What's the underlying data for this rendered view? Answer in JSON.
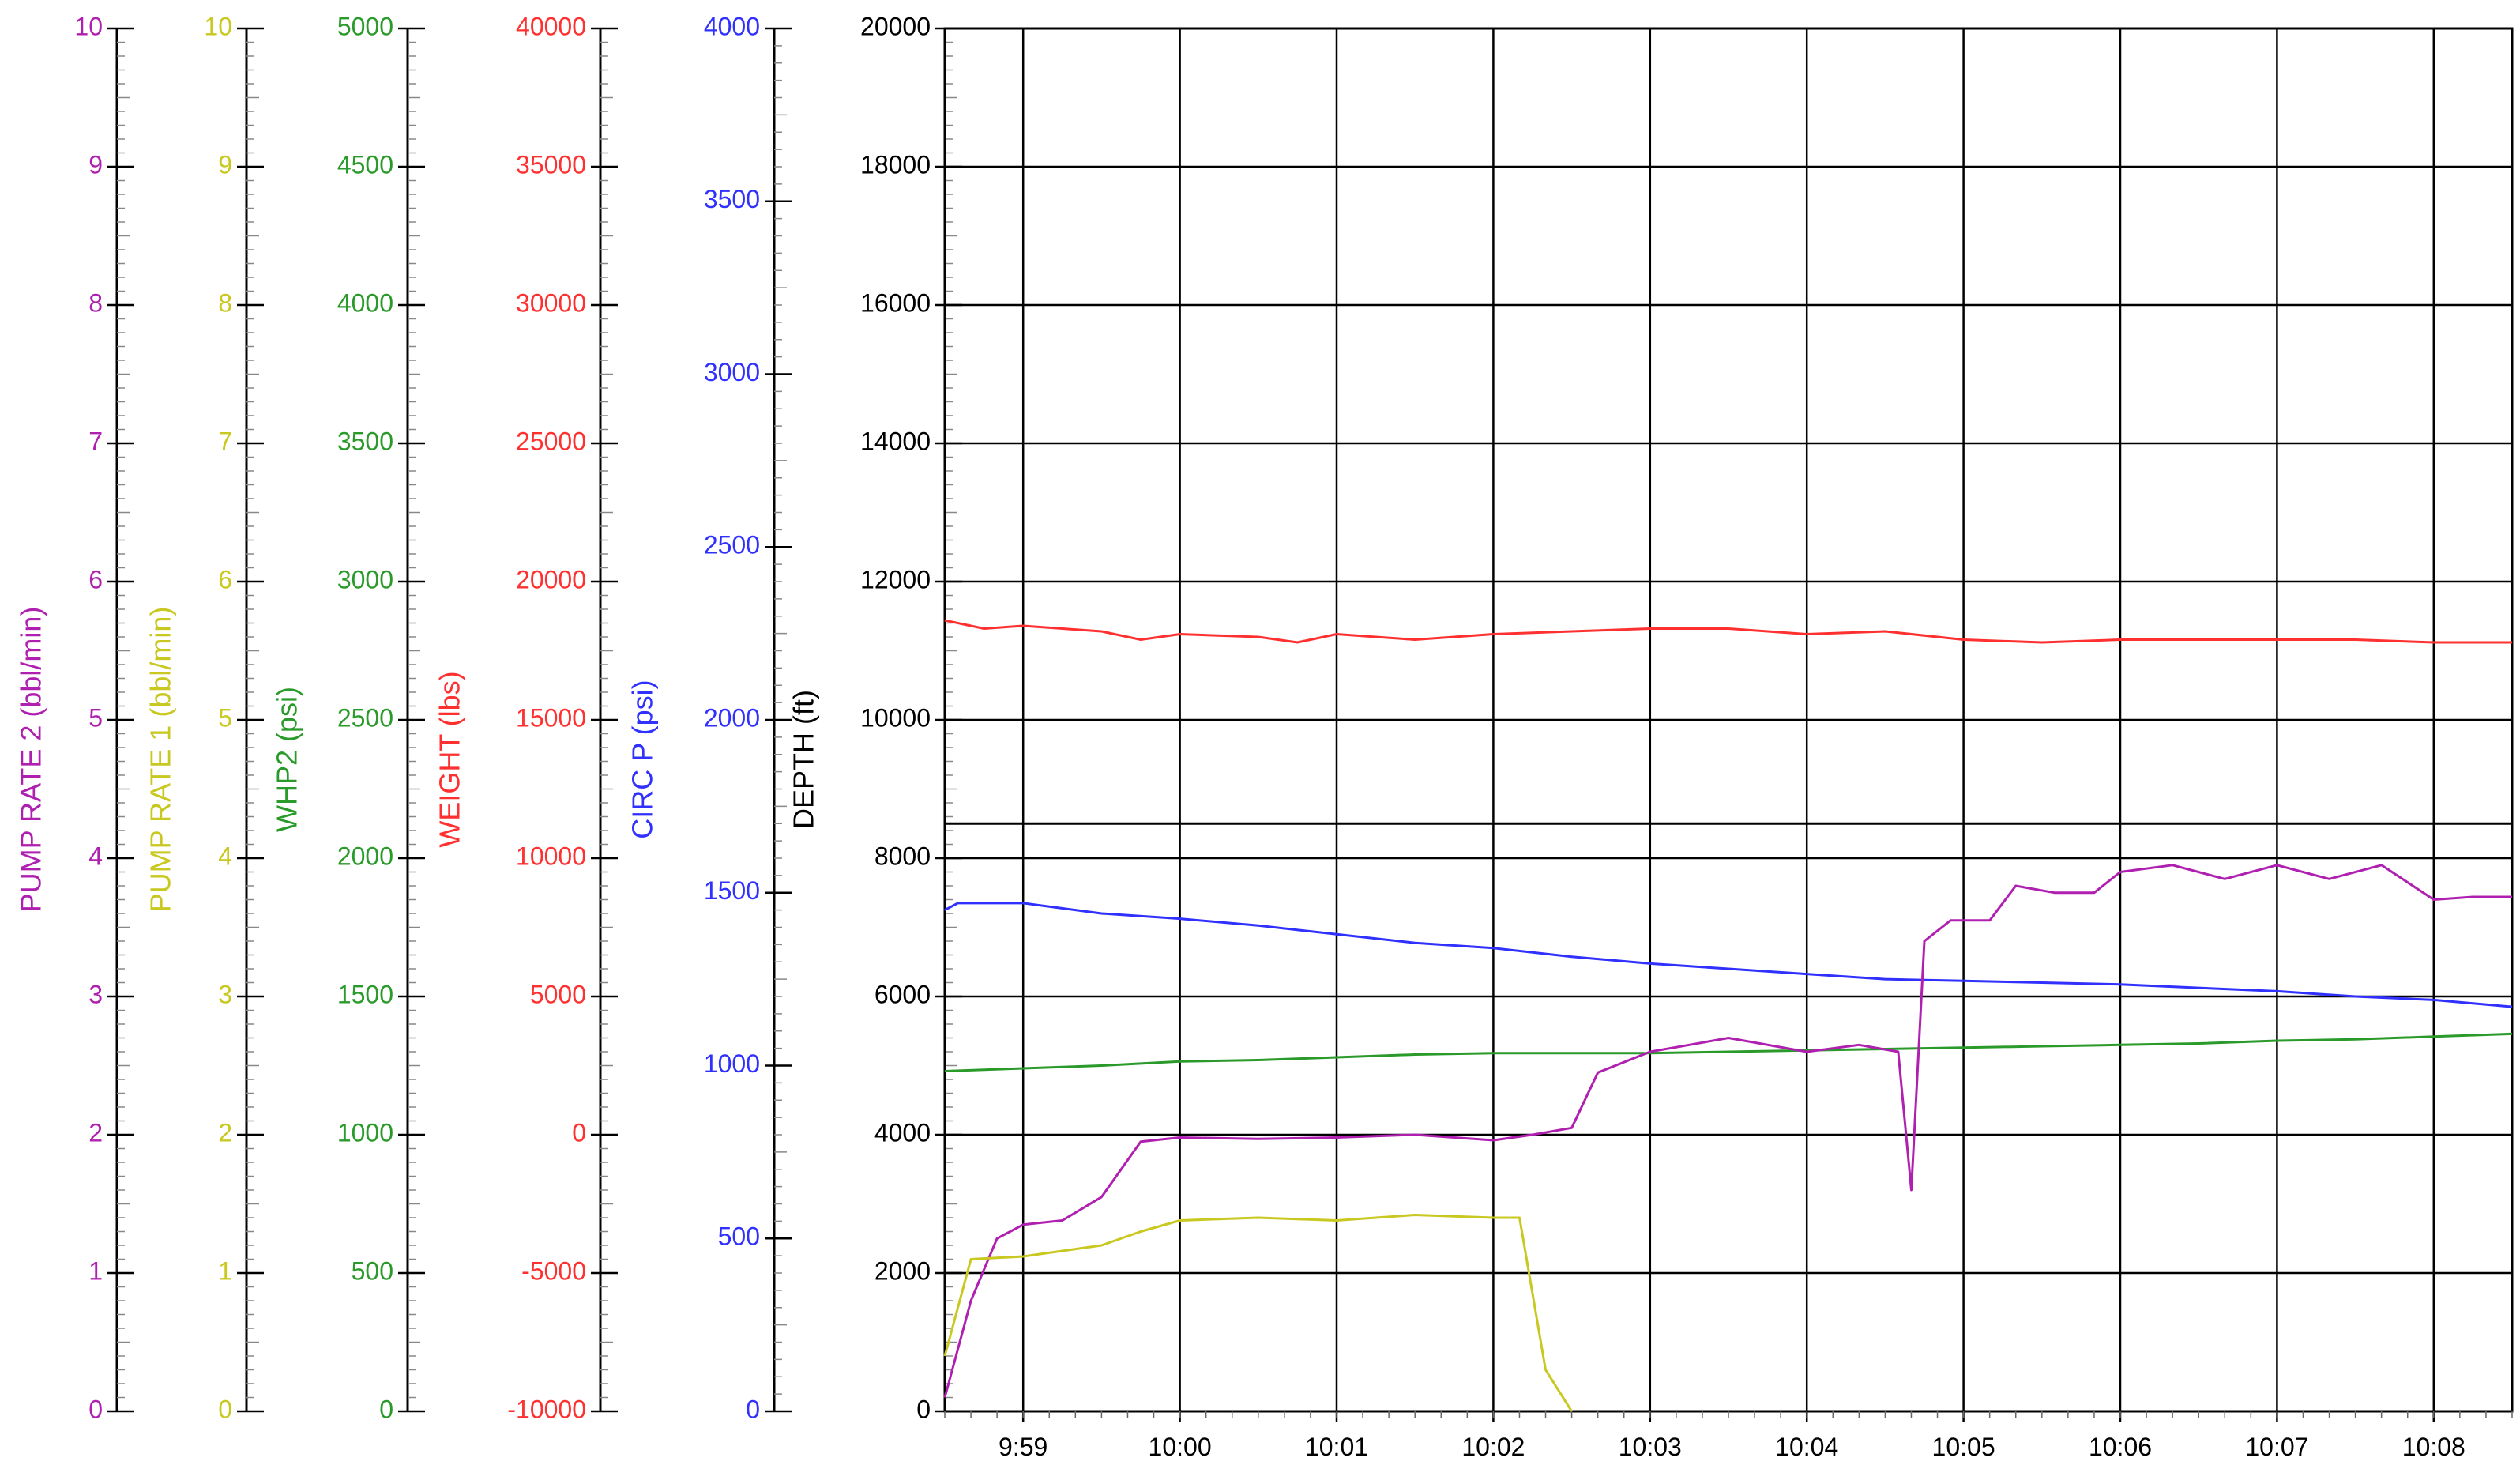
{
  "chart_data": {
    "type": "line",
    "x_axis": {
      "min": "09:58:30",
      "max": "10:08:30",
      "tick_labels": [
        "9:59",
        "10:00",
        "10:01",
        "10:02",
        "10:03",
        "10:04",
        "10:05",
        "10:06",
        "10:07",
        "10:08"
      ],
      "tick_times": [
        "09:59",
        "10:00",
        "10:01",
        "10:02",
        "10:03",
        "10:04",
        "10:05",
        "10:06",
        "10:07",
        "10:08"
      ]
    },
    "y_axes": [
      {
        "id": "pump2",
        "label": "PUMP RATE 2  (bbl/min)",
        "color": "#b020b0",
        "min": 0,
        "max": 10,
        "ticks": [
          "0",
          "1",
          "2",
          "3",
          "4",
          "5",
          "6",
          "7",
          "8",
          "9",
          "10"
        ]
      },
      {
        "id": "pump1",
        "label": "PUMP RATE 1  (bbl/min)",
        "color": "#c8c820",
        "min": 0,
        "max": 10,
        "ticks": [
          "0",
          "1",
          "2",
          "3",
          "4",
          "5",
          "6",
          "7",
          "8",
          "9",
          "10"
        ]
      },
      {
        "id": "whp2",
        "label": "WHP2  (psi)",
        "color": "#2a9a2a",
        "min": 0,
        "max": 5000,
        "ticks": [
          "0",
          "500",
          "1000",
          "1500",
          "2000",
          "2500",
          "3000",
          "3500",
          "4000",
          "4500",
          "5000"
        ]
      },
      {
        "id": "weight",
        "label": "WEIGHT  (lbs)",
        "color": "#ff3030",
        "min": -10000,
        "max": 40000,
        "ticks": [
          "-10000",
          "-5000",
          "0",
          "5000",
          "10000",
          "15000",
          "20000",
          "25000",
          "30000",
          "35000",
          "40000"
        ]
      },
      {
        "id": "circ",
        "label": "CIRC P  (psi)",
        "color": "#3030ff",
        "min": 0,
        "max": 4000,
        "ticks": [
          "0",
          "500",
          "1000",
          "1500",
          "2000",
          "2500",
          "3000",
          "3500",
          "4000"
        ]
      },
      {
        "id": "depth",
        "label": "DEPTH  (ft)",
        "color": "#000000",
        "min": 0,
        "max": 20000,
        "ticks": [
          "0",
          "2000",
          "4000",
          "6000",
          "8000",
          "10000",
          "12000",
          "14000",
          "16000",
          "18000",
          "20000"
        ]
      }
    ],
    "grid": true,
    "series": [
      {
        "axis": "weight",
        "color": "#ff3030",
        "x": [
          "09:58:30",
          "09:58:45",
          "09:59:00",
          "09:59:30",
          "09:59:45",
          "10:00:00",
          "10:00:30",
          "10:00:45",
          "10:01:00",
          "10:01:30",
          "10:02:00",
          "10:02:30",
          "10:03:00",
          "10:03:30",
          "10:04:00",
          "10:04:30",
          "10:05:00",
          "10:05:30",
          "10:06:00",
          "10:06:30",
          "10:07:00",
          "10:07:30",
          "10:08:00",
          "10:08:30"
        ],
        "y": [
          18600,
          18300,
          18400,
          18200,
          17900,
          18100,
          18000,
          17800,
          18100,
          17900,
          18100,
          18200,
          18300,
          18300,
          18100,
          18200,
          17900,
          17800,
          17900,
          17900,
          17900,
          17900,
          17800,
          17800
        ]
      },
      {
        "axis": "depth",
        "color": "#000000",
        "x": [
          "09:58:30",
          "10:08:30"
        ],
        "y": [
          8500,
          8500
        ]
      },
      {
        "axis": "circ",
        "color": "#3030ff",
        "x": [
          "09:58:30",
          "09:58:35",
          "09:59:00",
          "09:59:30",
          "10:00:00",
          "10:00:30",
          "10:01:00",
          "10:01:30",
          "10:02:00",
          "10:02:30",
          "10:03:00",
          "10:03:30",
          "10:04:00",
          "10:04:30",
          "10:05:00",
          "10:05:30",
          "10:06:00",
          "10:06:30",
          "10:07:00",
          "10:07:30",
          "10:08:00",
          "10:08:30"
        ],
        "y": [
          1450,
          1470,
          1470,
          1440,
          1425,
          1405,
          1380,
          1355,
          1340,
          1315,
          1295,
          1280,
          1265,
          1250,
          1245,
          1240,
          1235,
          1225,
          1215,
          1200,
          1190,
          1170
        ]
      },
      {
        "axis": "whp2",
        "color": "#2a9a2a",
        "x": [
          "09:58:30",
          "09:59:00",
          "09:59:30",
          "10:00:00",
          "10:00:30",
          "10:01:00",
          "10:01:30",
          "10:02:00",
          "10:02:30",
          "10:03:00",
          "10:03:30",
          "10:04:00",
          "10:04:30",
          "10:05:00",
          "10:05:30",
          "10:06:00",
          "10:06:30",
          "10:07:00",
          "10:07:30",
          "10:08:00",
          "10:08:30"
        ],
        "y": [
          1230,
          1240,
          1250,
          1265,
          1270,
          1280,
          1290,
          1295,
          1295,
          1295,
          1300,
          1305,
          1310,
          1315,
          1320,
          1325,
          1330,
          1340,
          1345,
          1355,
          1365
        ]
      },
      {
        "axis": "pump2",
        "color": "#b020b0",
        "x": [
          "09:58:30",
          "09:58:40",
          "09:58:50",
          "09:59:00",
          "09:59:15",
          "09:59:30",
          "09:59:45",
          "10:00:00",
          "10:00:30",
          "10:01:00",
          "10:01:30",
          "10:02:00",
          "10:02:15",
          "10:02:30",
          "10:02:40",
          "10:03:00",
          "10:03:15",
          "10:03:30",
          "10:04:00",
          "10:04:20",
          "10:04:35",
          "10:04:40",
          "10:04:45",
          "10:04:55",
          "10:05:10",
          "10:05:20",
          "10:05:35",
          "10:05:50",
          "10:06:00",
          "10:06:20",
          "10:06:40",
          "10:07:00",
          "10:07:20",
          "10:07:40",
          "10:08:00",
          "10:08:15",
          "10:08:30"
        ],
        "y": [
          0.1,
          0.8,
          1.25,
          1.35,
          1.38,
          1.55,
          1.95,
          1.98,
          1.97,
          1.98,
          2.0,
          1.96,
          2.0,
          2.05,
          2.45,
          2.6,
          2.65,
          2.7,
          2.6,
          2.65,
          2.6,
          1.6,
          3.4,
          3.55,
          3.55,
          3.8,
          3.75,
          3.75,
          3.9,
          3.95,
          3.85,
          3.95,
          3.85,
          3.95,
          3.7,
          3.72,
          3.72
        ]
      },
      {
        "axis": "pump1",
        "color": "#c8c820",
        "x": [
          "09:58:30",
          "09:58:40",
          "09:59:00",
          "09:59:30",
          "09:59:45",
          "10:00:00",
          "10:00:30",
          "10:01:00",
          "10:01:30",
          "10:02:00",
          "10:02:10",
          "10:02:20",
          "10:02:30"
        ],
        "y": [
          0.4,
          1.1,
          1.12,
          1.2,
          1.3,
          1.38,
          1.4,
          1.38,
          1.42,
          1.4,
          1.4,
          0.3,
          0.0
        ]
      }
    ]
  }
}
